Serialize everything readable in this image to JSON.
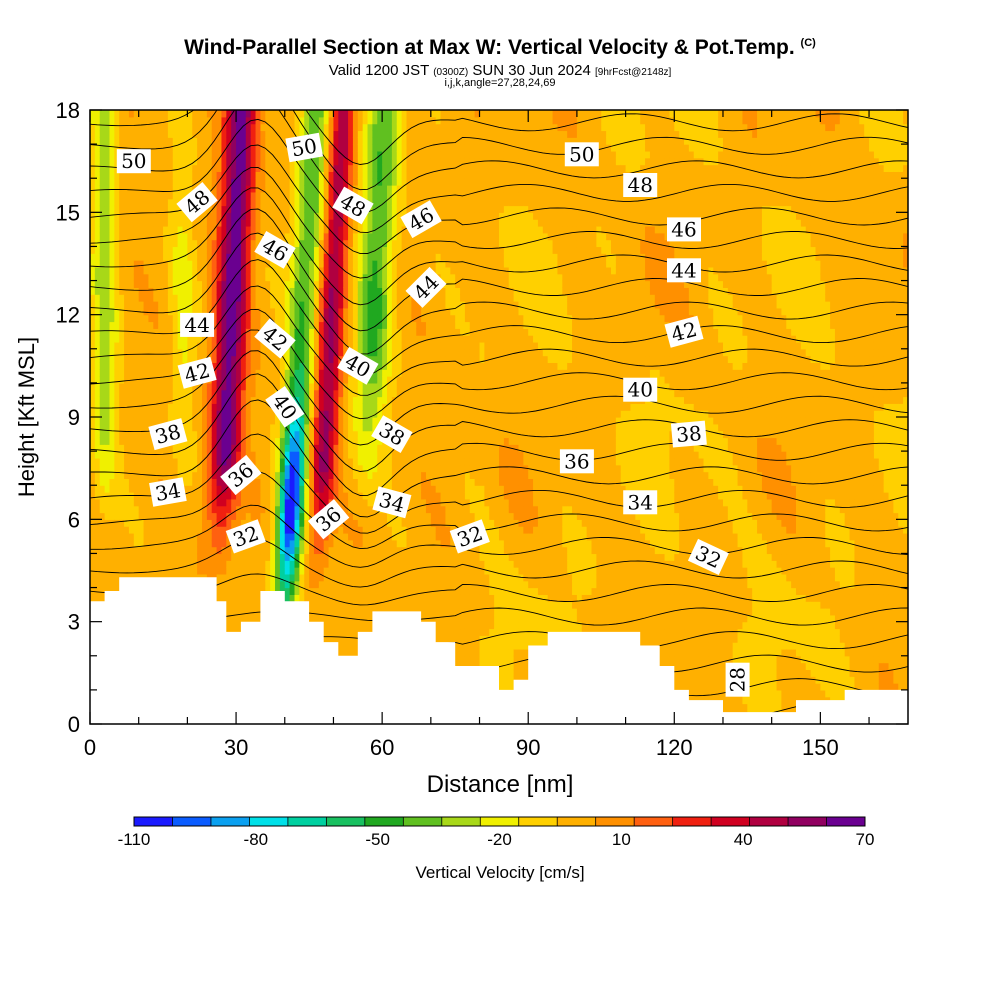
{
  "chart_data": {
    "type": "heatmap",
    "title": "Wind-Parallel Section at Max W: Vertical Velocity & Pot.Temp.",
    "title_mark": "(C)",
    "subtitle_main_a": "Valid 1200 JST ",
    "subtitle_main_b": "(0300Z)",
    "subtitle_main_c": " SUN 30 Jun 2024 ",
    "subtitle_main_d": "[9hrFcst@2148z]",
    "subtitle_small": "i,j,k,angle=27,28,24,69",
    "xlabel": "Distance [nm]",
    "ylabel": "Height [Kft MSL]",
    "xlim": [
      0,
      168
    ],
    "ylim": [
      0,
      18
    ],
    "xticks": [
      "0",
      "30",
      "60",
      "90",
      "120",
      "150"
    ],
    "xtick_values": [
      0,
      30,
      60,
      90,
      120,
      150
    ],
    "yticks": [
      "0",
      "3",
      "6",
      "9",
      "12",
      "15",
      "18"
    ],
    "ytick_values": [
      0,
      3,
      6,
      9,
      12,
      15,
      18
    ],
    "colorbar": {
      "label": "Vertical Velocity [cm/s]",
      "levels": [
        -110,
        -100,
        -90,
        -80,
        -70,
        -60,
        -50,
        -40,
        -30,
        -20,
        -10,
        0,
        10,
        20,
        30,
        40,
        50,
        60,
        70
      ],
      "tick_labels": [
        "-110",
        "-80",
        "-50",
        "-20",
        "10",
        "40",
        "70"
      ],
      "tick_values": [
        -110,
        -80,
        -50,
        -20,
        10,
        40,
        70
      ],
      "colors": [
        "#1a1aff",
        "#0a5cff",
        "#0aa0f0",
        "#00e0e8",
        "#00d0a0",
        "#18c060",
        "#20a820",
        "#60c020",
        "#a8d818",
        "#f0f000",
        "#ffd000",
        "#ffb000",
        "#ff9000",
        "#ff6010",
        "#f02010",
        "#d00020",
        "#b00040",
        "#900060",
        "#6a0090"
      ]
    },
    "updraft_cores": [
      {
        "x": 28,
        "zmin": 4.5,
        "zmax": 18,
        "peak_w": 70
      },
      {
        "x": 48,
        "zmin": 4.0,
        "zmax": 18,
        "peak_w": 50
      }
    ],
    "downdraft_core": {
      "x": 42,
      "zmin": 3.0,
      "zmax": 17,
      "peak_w": -110
    },
    "isentrope_labels": [
      {
        "text": "50",
        "x": 9,
        "y": 16.5,
        "angle": 0
      },
      {
        "text": "48",
        "x": 22,
        "y": 15.3,
        "angle": -40
      },
      {
        "text": "44",
        "x": 22,
        "y": 11.7,
        "angle": 0
      },
      {
        "text": "42",
        "x": 22,
        "y": 10.3,
        "angle": -15
      },
      {
        "text": "38",
        "x": 16,
        "y": 8.5,
        "angle": -15
      },
      {
        "text": "34",
        "x": 16,
        "y": 6.8,
        "angle": -10
      },
      {
        "text": "50",
        "x": 44,
        "y": 16.9,
        "angle": -10
      },
      {
        "text": "46",
        "x": 38,
        "y": 13.9,
        "angle": 30
      },
      {
        "text": "42",
        "x": 38,
        "y": 11.3,
        "angle": 40
      },
      {
        "text": "40",
        "x": 40,
        "y": 9.3,
        "angle": 55
      },
      {
        "text": "36",
        "x": 31,
        "y": 7.3,
        "angle": -40
      },
      {
        "text": "32",
        "x": 32,
        "y": 5.5,
        "angle": -20
      },
      {
        "text": "48",
        "x": 54,
        "y": 15.2,
        "angle": 30
      },
      {
        "text": "40",
        "x": 55,
        "y": 10.5,
        "angle": 30
      },
      {
        "text": "36",
        "x": 49,
        "y": 6.0,
        "angle": -40
      },
      {
        "text": "46",
        "x": 68,
        "y": 14.8,
        "angle": -30
      },
      {
        "text": "44",
        "x": 69,
        "y": 12.8,
        "angle": -45
      },
      {
        "text": "38",
        "x": 62,
        "y": 8.5,
        "angle": 30
      },
      {
        "text": "34",
        "x": 62,
        "y": 6.5,
        "angle": 15
      },
      {
        "text": "32",
        "x": 78,
        "y": 5.5,
        "angle": -20
      },
      {
        "text": "50",
        "x": 101,
        "y": 16.7,
        "angle": 0
      },
      {
        "text": "48",
        "x": 113,
        "y": 15.8,
        "angle": 0
      },
      {
        "text": "46",
        "x": 122,
        "y": 14.5,
        "angle": 0
      },
      {
        "text": "44",
        "x": 122,
        "y": 13.3,
        "angle": 0
      },
      {
        "text": "42",
        "x": 122,
        "y": 11.5,
        "angle": -15
      },
      {
        "text": "40",
        "x": 113,
        "y": 9.8,
        "angle": 0
      },
      {
        "text": "38",
        "x": 123,
        "y": 8.5,
        "angle": -5
      },
      {
        "text": "36",
        "x": 100,
        "y": 7.7,
        "angle": 0
      },
      {
        "text": "34",
        "x": 113,
        "y": 6.5,
        "angle": 0
      },
      {
        "text": "32",
        "x": 127,
        "y": 4.9,
        "angle": 25
      },
      {
        "text": "28",
        "x": 133,
        "y": 1.3,
        "angle": -90
      }
    ],
    "terrain_top_kft": [
      [
        0,
        3.6
      ],
      [
        3,
        3.6
      ],
      [
        3,
        3.9
      ],
      [
        6,
        3.9
      ],
      [
        6,
        4.3
      ],
      [
        26,
        4.3
      ],
      [
        26,
        3.6
      ],
      [
        28,
        3.6
      ],
      [
        28,
        2.7
      ],
      [
        31,
        2.7
      ],
      [
        31,
        3.0
      ],
      [
        35,
        3.0
      ],
      [
        35,
        3.9
      ],
      [
        40,
        3.9
      ],
      [
        40,
        3.6
      ],
      [
        45,
        3.6
      ],
      [
        45,
        3.0
      ],
      [
        48,
        3.0
      ],
      [
        48,
        2.4
      ],
      [
        51,
        2.4
      ],
      [
        51,
        2.0
      ],
      [
        55,
        2.0
      ],
      [
        55,
        2.7
      ],
      [
        58,
        2.7
      ],
      [
        58,
        3.3
      ],
      [
        68,
        3.3
      ],
      [
        68,
        3.0
      ],
      [
        71,
        3.0
      ],
      [
        71,
        2.4
      ],
      [
        75,
        2.4
      ],
      [
        75,
        1.7
      ],
      [
        84,
        1.7
      ],
      [
        84,
        1.0
      ],
      [
        87,
        1.0
      ],
      [
        87,
        1.3
      ],
      [
        90,
        1.3
      ],
      [
        90,
        2.3
      ],
      [
        94,
        2.3
      ],
      [
        94,
        2.7
      ],
      [
        113,
        2.7
      ],
      [
        113,
        2.3
      ],
      [
        117,
        2.3
      ],
      [
        117,
        1.7
      ],
      [
        120,
        1.7
      ],
      [
        120,
        1.0
      ],
      [
        123,
        1.0
      ],
      [
        123,
        0.7
      ],
      [
        130,
        0.7
      ],
      [
        130,
        0.35
      ],
      [
        145,
        0.35
      ],
      [
        145,
        0.7
      ],
      [
        155,
        0.7
      ],
      [
        155,
        1.0
      ],
      [
        168,
        1.0
      ]
    ]
  }
}
